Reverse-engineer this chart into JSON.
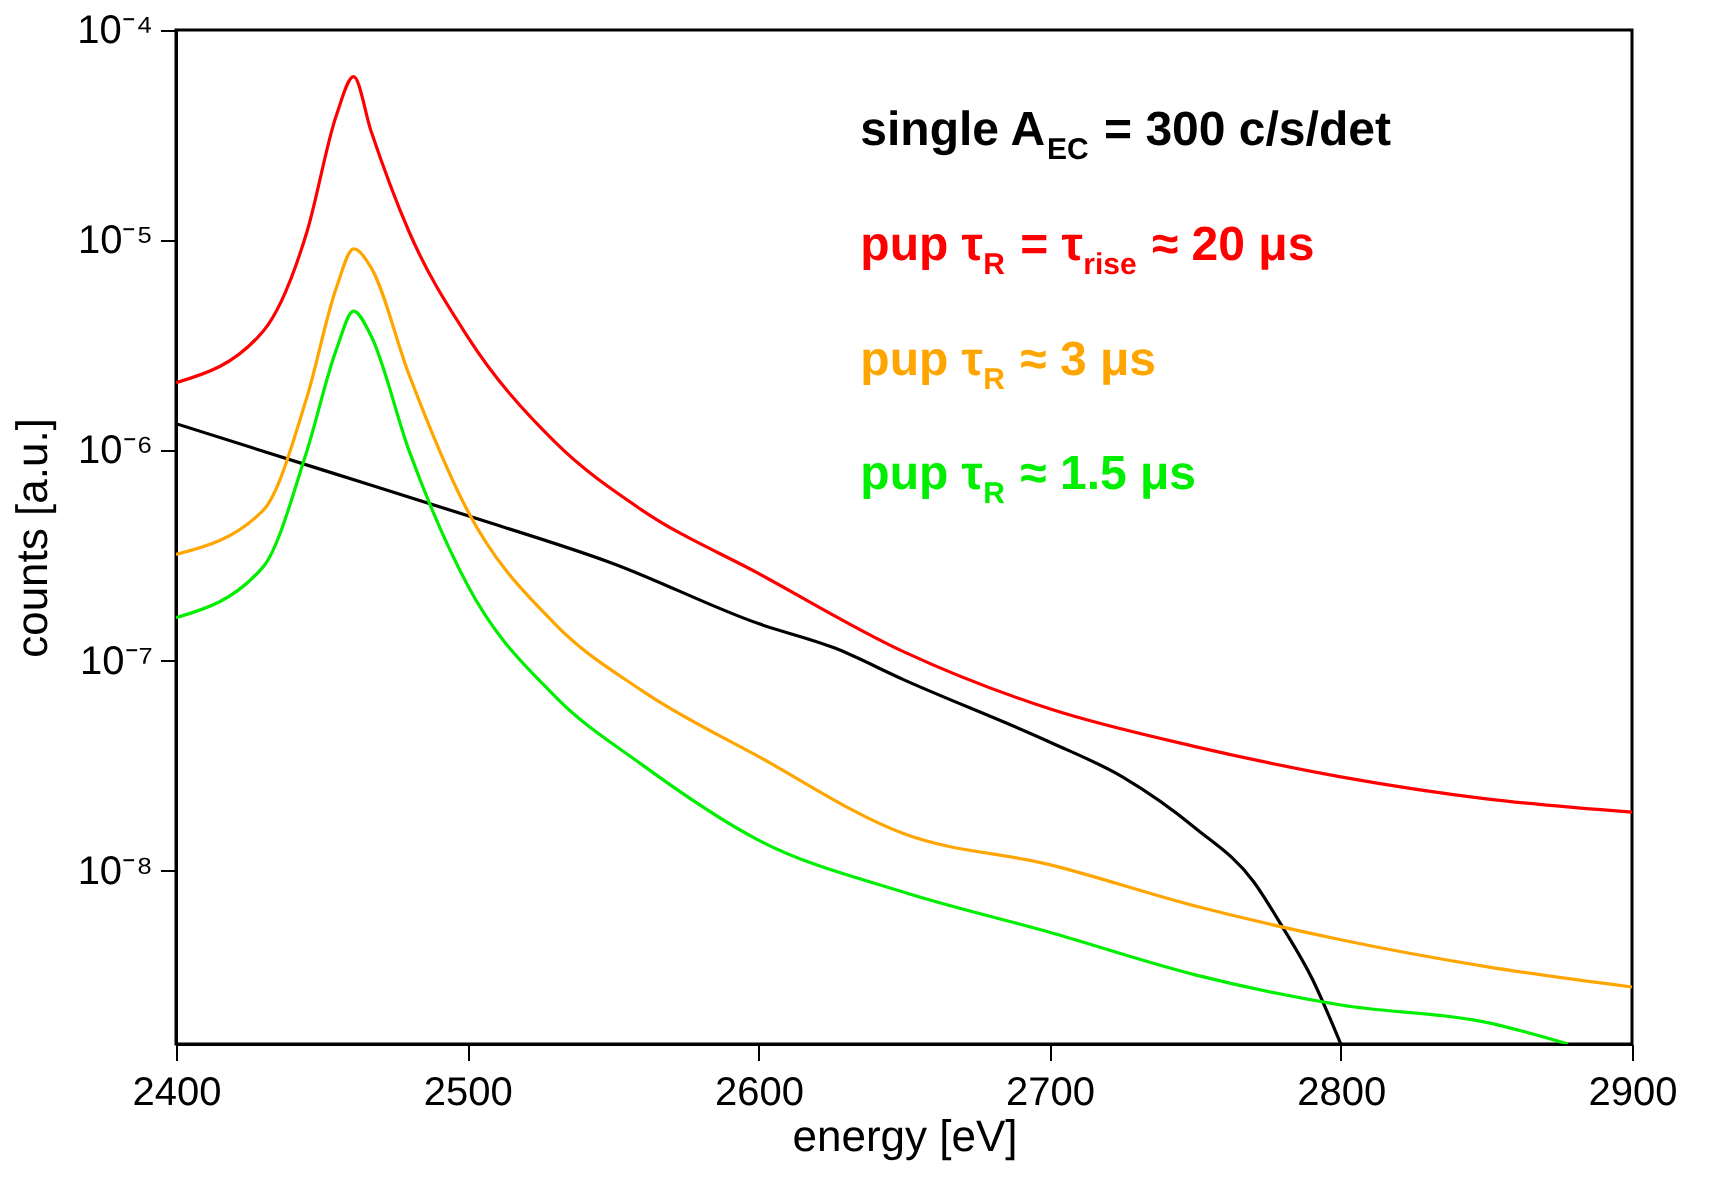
{
  "chart_data": {
    "type": "line",
    "xlabel": "energy [eV]",
    "ylabel": "counts [a.u.]",
    "x": [
      2400,
      2430,
      2445,
      2455,
      2461,
      2467,
      2480,
      2500,
      2530,
      2560,
      2600,
      2650,
      2700,
      2750,
      2800,
      2850,
      2900
    ],
    "series": [
      {
        "name": "single A$_{EC}$ = 300 c/s/det",
        "color": "#000000",
        "x": [
          2400,
          2450,
          2500,
          2550,
          2600,
          2626,
          2650,
          2700,
          2725,
          2750,
          2770,
          2780,
          2790,
          2800
        ],
        "values": [
          1.34e-06,
          8.1e-07,
          4.9e-07,
          2.9e-07,
          1.5e-07,
          1.15e-07,
          8.1e-08,
          4.1e-08,
          2.8e-08,
          1.6e-08,
          8.9e-09,
          5.4e-09,
          3.1e-09,
          1.5e-09
        ]
      },
      {
        "name": "pup τ$_{R}$ = τ$_{rise}$ ≈ 20 μs",
        "color": "#ff0000",
        "values": [
          2.1e-06,
          3.7e-06,
          1.1e-05,
          3.9e-05,
          6e-05,
          3.3e-05,
          1.1e-05,
          3.5e-06,
          1.1e-06,
          5.2e-07,
          2.6e-07,
          1.1e-07,
          5.9e-08,
          3.9e-08,
          2.8e-08,
          2.2e-08,
          1.9e-08
        ]
      },
      {
        "name": "pup τ$_{R}$ ≈ 3 μs",
        "color": "#ffa500",
        "values": [
          3.2e-07,
          5.2e-07,
          1.8e-06,
          5.9e-06,
          9.1e-06,
          7.4e-06,
          2.3e-06,
          5.2e-07,
          1.5e-07,
          7.2e-08,
          3.5e-08,
          1.5e-08,
          1.07e-08,
          6.8e-09,
          4.7e-09,
          3.5e-09,
          2.8e-09
        ]
      },
      {
        "name": "pup τ$_{R}$ ≈ 1.5 μs",
        "color": "#00ee00",
        "x": [
          2400,
          2430,
          2445,
          2455,
          2461,
          2467,
          2480,
          2500,
          2530,
          2560,
          2600,
          2650,
          2700,
          2750,
          2800,
          2850,
          2878
        ],
        "values": [
          1.6e-07,
          2.8e-07,
          1e-06,
          3e-06,
          4.6e-06,
          3.5e-06,
          1e-06,
          2.3e-07,
          6.8e-08,
          3.2e-08,
          1.4e-08,
          7.9e-09,
          5.1e-09,
          3.2e-09,
          2.3e-09,
          1.9e-09,
          1.5e-09
        ]
      }
    ],
    "xlim": [
      2400,
      2900
    ],
    "xticks": [
      2400,
      2500,
      2600,
      2700,
      2800,
      2900
    ],
    "ylim": [
      1.5e-09,
      0.0001
    ],
    "yticks": [
      {
        "value": 1e-08,
        "label": "10⁻⁸"
      },
      {
        "value": 1e-07,
        "label": "10⁻⁷"
      },
      {
        "value": 1e-06,
        "label": "10⁻⁶"
      },
      {
        "value": 1e-05,
        "label": "10⁻⁵"
      },
      {
        "value": 0.0001,
        "label": "10⁻⁴"
      }
    ],
    "log": true,
    "grid": false,
    "legend": "top right",
    "marker": "none",
    "line_style": "solid"
  }
}
